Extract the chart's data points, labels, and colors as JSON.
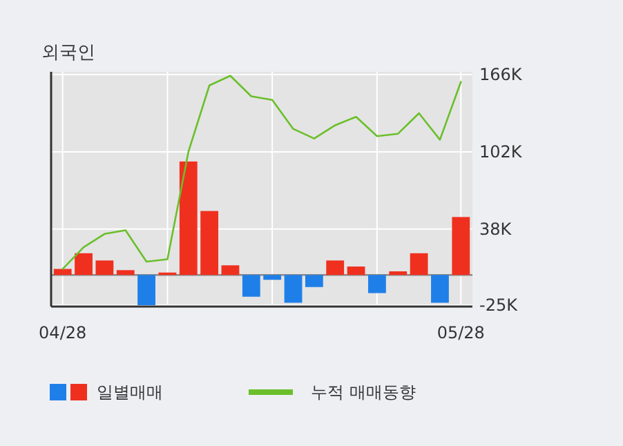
{
  "chart_data": {
    "type": "bar",
    "title": "외국인",
    "categories": [
      "04/28",
      null,
      null,
      null,
      null,
      null,
      null,
      null,
      null,
      null,
      null,
      null,
      null,
      null,
      null,
      null,
      null,
      null,
      null,
      "05/28"
    ],
    "series": [
      {
        "name": "일별매매",
        "colors": [
          "#f0301f",
          "#f0301f",
          "#f0301f",
          "#f0301f",
          "#1f7fe8",
          "#f0301f",
          "#f0301f",
          "#f0301f",
          "#f0301f",
          "#1f7fe8",
          "#1f7fe8",
          "#1f7fe8",
          "#1f7fe8",
          "#f0301f",
          "#f0301f",
          "#1f7fe8",
          "#f0301f",
          "#f0301f",
          "#1f7fe8",
          "#f0301f"
        ],
        "values": [
          5,
          18,
          12,
          4,
          -25,
          2,
          94,
          53,
          8,
          -18,
          -4,
          -23,
          -10,
          12,
          7,
          -15,
          3,
          18,
          -23,
          48
        ]
      },
      {
        "name": "누적 매매동향",
        "type": "line",
        "color": "#6abf2a",
        "values": [
          5,
          23,
          34,
          37,
          11,
          13,
          102,
          157,
          165,
          148,
          145,
          121,
          113,
          124,
          131,
          115,
          117,
          134,
          112,
          160
        ]
      }
    ],
    "ylim": [
      -25,
      166
    ],
    "yticks": [
      {
        "value": 166,
        "label": "166K"
      },
      {
        "value": 102,
        "label": "102K"
      },
      {
        "value": 38,
        "label": "38K"
      },
      {
        "value": -25,
        "label": "-25K"
      }
    ],
    "grid": true,
    "legend": "bottom",
    "marker": "none"
  }
}
